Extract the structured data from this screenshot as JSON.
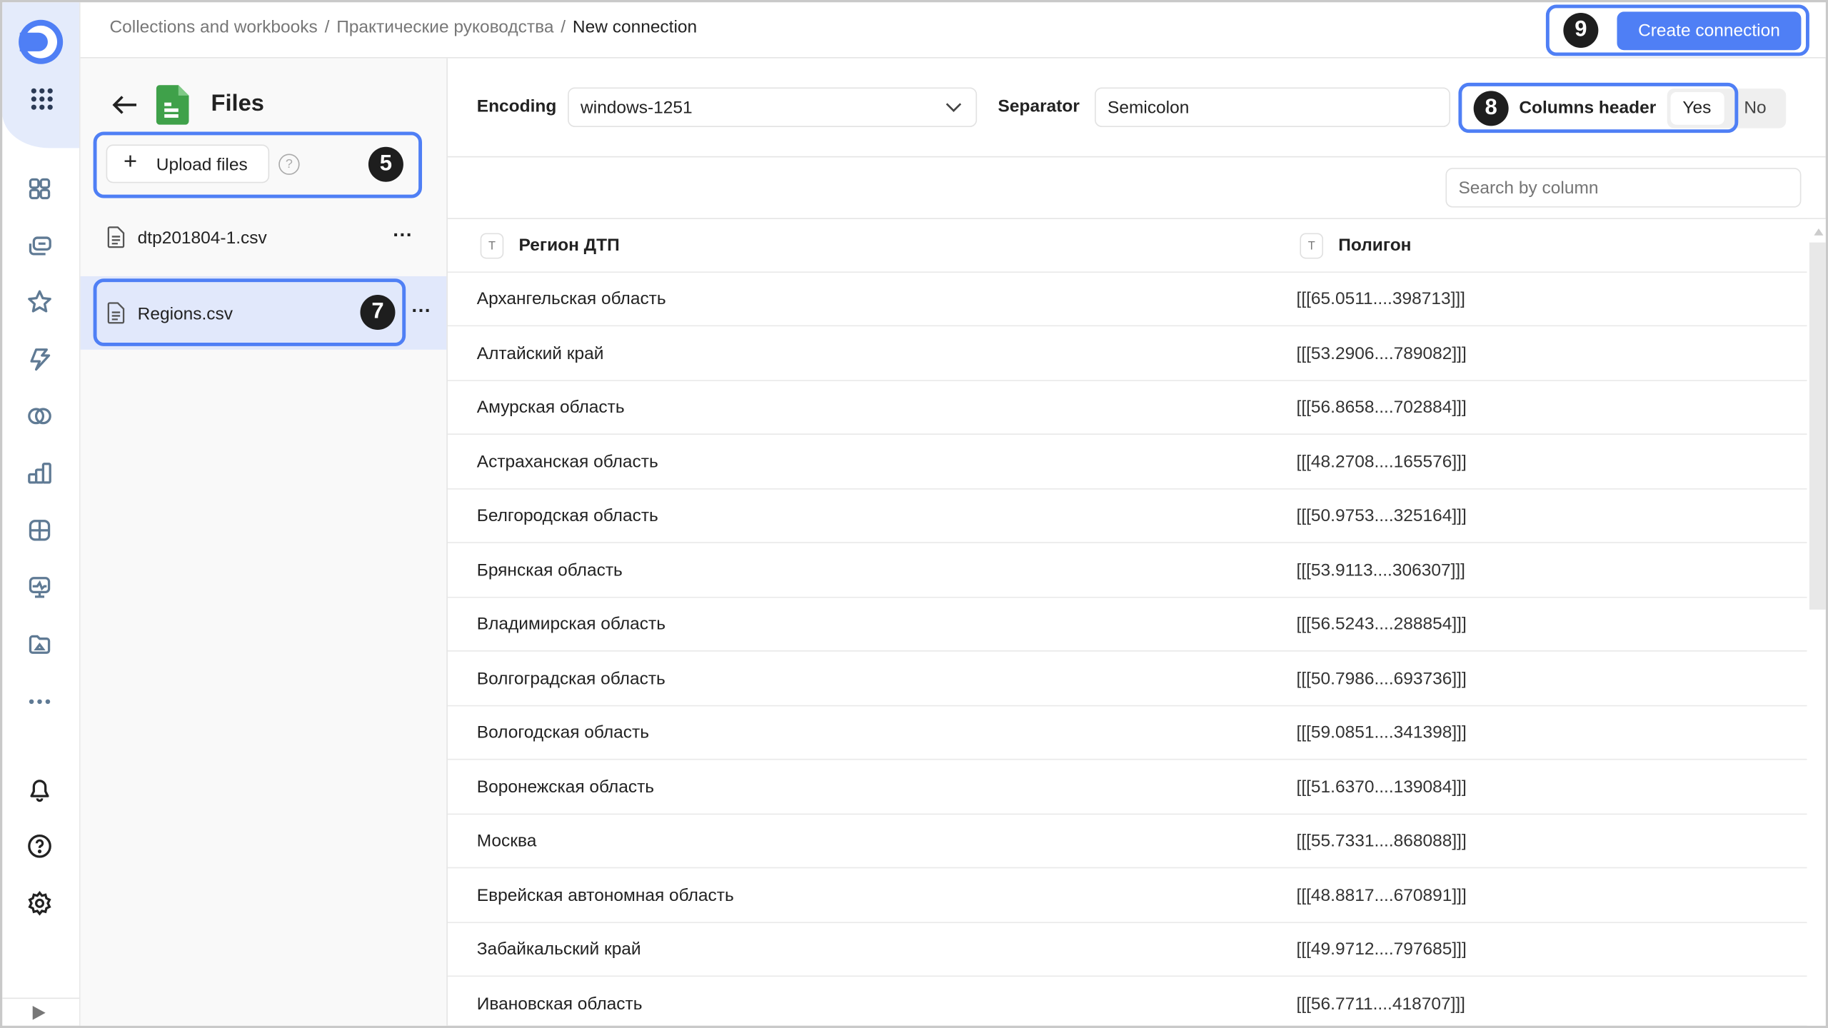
{
  "nav": {
    "icons": [
      "logo-icon",
      "apps-grid-icon",
      "collections-icon",
      "workbooks-icon",
      "favorites-star-icon",
      "connections-bolt-icon",
      "datasets-rings-icon",
      "charts-bar-icon",
      "dashboards-grid-icon",
      "monitor-icon",
      "folder-icon",
      "more-dots-icon",
      "bell-icon",
      "help-icon",
      "gear-icon",
      "expand-arrow-icon"
    ],
    "accent": "#4f7ff5"
  },
  "breadcrumb": {
    "items": [
      "Collections and workbooks",
      "Практические руководства"
    ],
    "separator": "/",
    "current": "New connection"
  },
  "header": {
    "create_label": "Create connection",
    "badge": "9"
  },
  "files": {
    "title": "Files",
    "upload_label": "Upload files",
    "upload_badge": "5",
    "items": [
      {
        "name": "dtp201804-1.csv"
      },
      {
        "name": "Regions.csv",
        "badge": "7"
      }
    ],
    "more_glyph": "···"
  },
  "settings": {
    "encoding_label": "Encoding",
    "encoding_value": "windows-1251",
    "separator_label": "Separator",
    "separator_value": "Semicolon",
    "columns_header_label": "Columns header",
    "columns_header_badge": "8",
    "yes": "Yes",
    "no": "No",
    "selected": "Yes"
  },
  "search": {
    "placeholder": "Search by column"
  },
  "table": {
    "type_glyph": "T",
    "columns": [
      "Регион ДТП",
      "Полигон"
    ],
    "rows": [
      [
        "Архангельская область",
        "[[[65.0511....398713]]]"
      ],
      [
        "Алтайский край",
        "[[[53.2906....789082]]]"
      ],
      [
        "Амурская область",
        "[[[56.8658....702884]]]"
      ],
      [
        "Астраханская область",
        "[[[48.2708....165576]]]"
      ],
      [
        "Белгородская область",
        "[[[50.9753....325164]]]"
      ],
      [
        "Брянская область",
        "[[[53.9113....306307]]]"
      ],
      [
        "Владимирская область",
        "[[[56.5243....288854]]]"
      ],
      [
        "Волгоградская область",
        "[[[50.7986....693736]]]"
      ],
      [
        "Вологодская область",
        "[[[59.0851....341398]]]"
      ],
      [
        "Воронежская область",
        "[[[51.6370....139084]]]"
      ],
      [
        "Москва",
        "[[[55.7331....868088]]]"
      ],
      [
        "Еврейская автономная область",
        "[[[48.8817....670891]]]"
      ],
      [
        "Забайкальский край",
        "[[[49.9712....797685]]]"
      ],
      [
        "Ивановская область",
        "[[[56.7711....418707]]]"
      ]
    ]
  }
}
